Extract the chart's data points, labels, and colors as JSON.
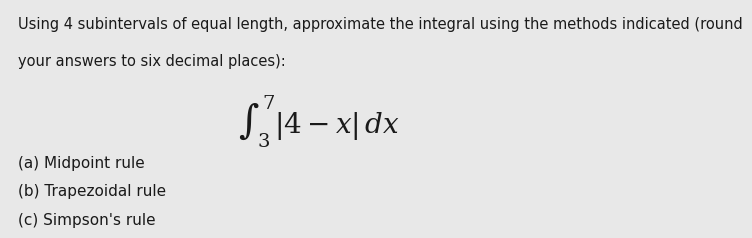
{
  "background_color": "#e8e8e8",
  "intro_text_line1": "Using 4 subintervals of equal length, approximate the integral using the methods indicated (round",
  "intro_text_line2": "your answers to six decimal places):",
  "integral_expr": "$\\int_3^7 |4 - x|\\, dx$",
  "part_a": "(a) Midpoint rule",
  "part_b": "(b) Trapezoidal rule",
  "part_c": "(c) Simpson's rule",
  "text_color": "#1a1a1a",
  "font_size_intro": 10.5,
  "font_size_integral": 20,
  "font_size_parts": 11
}
